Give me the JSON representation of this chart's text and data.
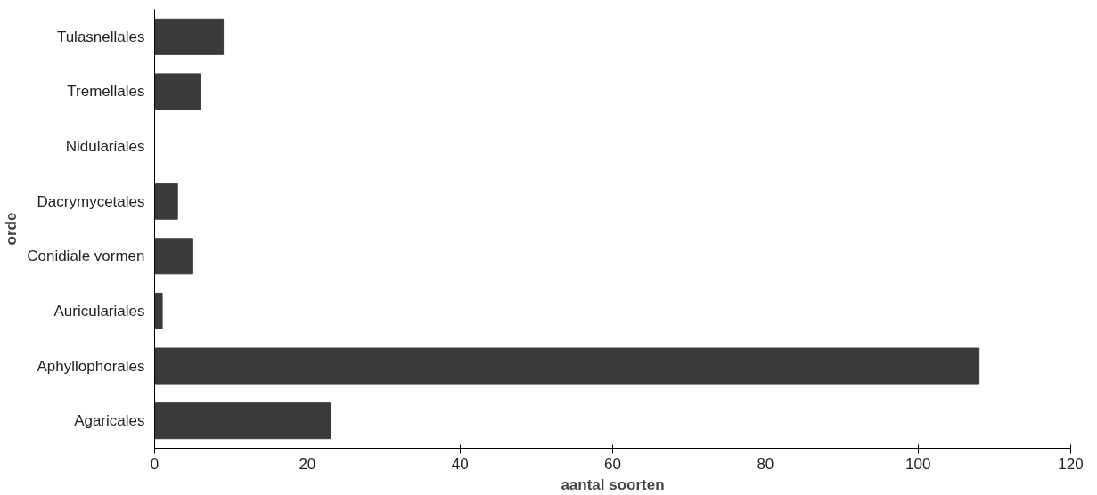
{
  "chart_data": {
    "type": "bar",
    "orientation": "horizontal",
    "xlabel": "aantal soorten",
    "ylabel": "orde",
    "categories": [
      "Tulasnellales",
      "Tremellales",
      "Nidulariales",
      "Dacrymycetales",
      "Conidiale vormen",
      "Auriculariales",
      "Aphyllophorales",
      "Agaricales"
    ],
    "values": [
      9,
      6,
      0,
      3,
      5,
      1,
      108,
      23
    ],
    "color": "#3a3a3a",
    "xlim": [
      0,
      120
    ],
    "xticks": [
      0,
      20,
      40,
      60,
      80,
      100,
      120
    ],
    "grid": false
  }
}
